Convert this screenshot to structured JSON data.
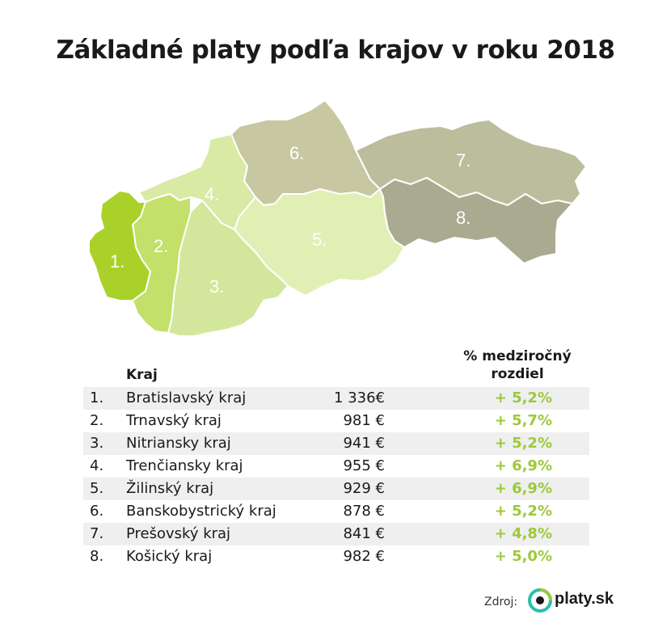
{
  "title": "Základné platy podľa krajov v roku 2018",
  "map": {
    "labels": [
      "1.",
      "2.",
      "3.",
      "4.",
      "5.",
      "6.",
      "7.",
      "8."
    ],
    "colors": {
      "r1": "#aad12a",
      "r2": "#c2e06a",
      "r3": "#d2e79b",
      "r4": "#d8eaa4",
      "r5": "#e2efb4",
      "r6": "#c7c8a2",
      "r7": "#bcbd9c",
      "r8": "#a9aa8f",
      "accent_green": "#9cc93a"
    }
  },
  "table": {
    "header_region": "Kraj",
    "header_change": "% medziročný rozdiel"
  },
  "chart_data": {
    "type": "table",
    "title": "Základné platy podľa krajov v roku 2018",
    "columns": [
      "",
      "Kraj",
      "",
      "% medziročný rozdiel"
    ],
    "rows": [
      {
        "num": "1.",
        "region": "Bratislavský kraj",
        "salary": "1 336€",
        "change": "+ 5,2%"
      },
      {
        "num": "2.",
        "region": "Trnavský kraj",
        "salary": "981 €",
        "change": "+ 5,7%"
      },
      {
        "num": "3.",
        "region": "Nitriansky kraj",
        "salary": "941 €",
        "change": "+ 5,2%"
      },
      {
        "num": "4.",
        "region": "Trenčiansky kraj",
        "salary": "955 €",
        "change": "+ 6,9%"
      },
      {
        "num": "5.",
        "region": "Žilinský kraj",
        "salary": "929 €",
        "change": "+ 6,9%"
      },
      {
        "num": "6.",
        "region": "Banskobystrický kraj",
        "salary": "878 €",
        "change": "+ 5,2%"
      },
      {
        "num": "7.",
        "region": "Prešovský kraj",
        "salary": "841 €",
        "change": "+ 4,8%"
      },
      {
        "num": "8.",
        "region": "Košický kraj",
        "salary": "982 €",
        "change": "+ 5,0%"
      }
    ]
  },
  "footer": {
    "source_label": "Zdroj:",
    "logo_text": "platy.sk",
    "logo_icon": "platy-logo-icon"
  }
}
